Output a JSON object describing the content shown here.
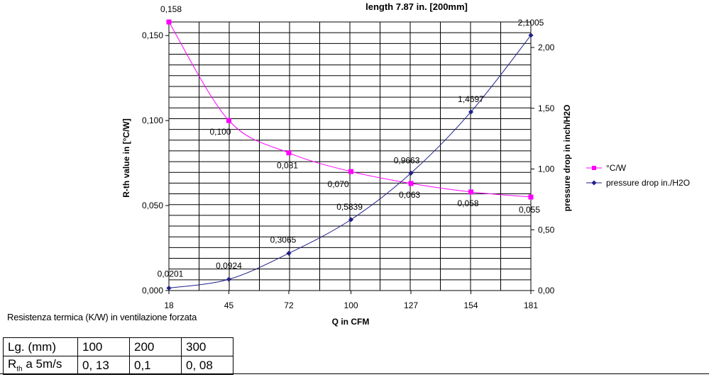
{
  "chart_data": {
    "type": "line",
    "title": "length 7.87 in. [200mm]",
    "xlabel": "Q in CFM",
    "ylabel_left": "R-th value in [°C/W]",
    "ylabel_right": "pressure drop in inch/H2O",
    "x_ticks": [
      "18",
      "45",
      "72",
      "100",
      "127",
      "154",
      "181"
    ],
    "ylim_left": [
      0,
      0.158
    ],
    "ylim_right": [
      0,
      2.21
    ],
    "y_ticks_left": [
      {
        "value": 0.0,
        "label": "0,000"
      },
      {
        "value": 0.05,
        "label": "0,050"
      },
      {
        "value": 0.1,
        "label": "0,100"
      },
      {
        "value": 0.15,
        "label": "0,150"
      }
    ],
    "y_ticks_right": [
      {
        "value": 0.0,
        "label": "0,00"
      },
      {
        "value": 0.5,
        "label": "0,50"
      },
      {
        "value": 1.0,
        "label": "1,00"
      },
      {
        "value": 1.5,
        "label": "1,50"
      },
      {
        "value": 2.0,
        "label": "2,00"
      }
    ],
    "grid": true,
    "legend_position": "right",
    "series": [
      {
        "name": "°C/W",
        "axis": "left",
        "color": "#ff00ff",
        "marker": "square",
        "x": [
          18,
          45,
          72,
          100,
          127,
          154,
          181
        ],
        "values": [
          0.158,
          0.1,
          0.081,
          0.07,
          0.063,
          0.058,
          0.055
        ],
        "labels": [
          "0,158",
          "0,100",
          "0,081",
          "0,070",
          "0,063",
          "0,058",
          "0,055"
        ]
      },
      {
        "name": "pressure drop in./H2O",
        "axis": "right",
        "color": "#1f1f8a",
        "marker": "diamond",
        "x": [
          18,
          45,
          72,
          100,
          127,
          154,
          181
        ],
        "values": [
          0.0201,
          0.0924,
          0.3065,
          0.5839,
          0.9663,
          1.4697,
          2.1005
        ],
        "labels": [
          "0,0201",
          "0,0924",
          "0,3065",
          "0,5839",
          "0,9663",
          "1,4697",
          "2,1005"
        ]
      }
    ]
  },
  "note": "Resistenza termica (K/W) in ventilazione forzata",
  "table": {
    "header": [
      "Lg. (mm)",
      "100",
      "200",
      "300"
    ],
    "row_label_main": "R",
    "row_label_sub": "th",
    "row_label_rest": " a 5m/s",
    "row": [
      "0, 13",
      "0,1",
      "0, 08"
    ]
  }
}
